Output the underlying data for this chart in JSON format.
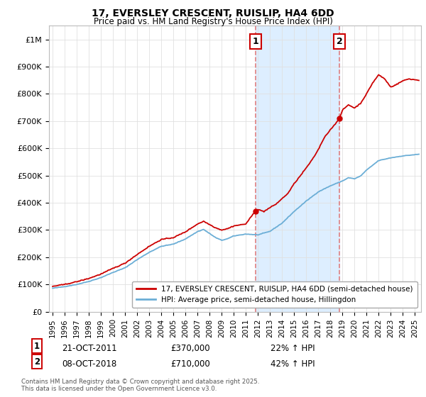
{
  "title": "17, EVERSLEY CRESCENT, RUISLIP, HA4 6DD",
  "subtitle": "Price paid vs. HM Land Registry's House Price Index (HPI)",
  "ylabel_ticks": [
    "£0",
    "£100K",
    "£200K",
    "£300K",
    "£400K",
    "£500K",
    "£600K",
    "£700K",
    "£800K",
    "£900K",
    "£1M"
  ],
  "ytick_values": [
    0,
    100000,
    200000,
    300000,
    400000,
    500000,
    600000,
    700000,
    800000,
    900000,
    1000000
  ],
  "xlim": [
    1994.7,
    2025.5
  ],
  "ylim": [
    0,
    1050000
  ],
  "sale1_year": 2011.8,
  "sale1_price": 370000,
  "sale1_label": "1",
  "sale1_date": "21-OCT-2011",
  "sale1_price_str": "£370,000",
  "sale1_hpi_str": "22% ↑ HPI",
  "sale2_year": 2018.77,
  "sale2_price": 710000,
  "sale2_label": "2",
  "sale2_date": "08-OCT-2018",
  "sale2_price_str": "£710,000",
  "sale2_hpi_str": "42% ↑ HPI",
  "red_color": "#cc0000",
  "blue_color": "#6baed6",
  "vline_color": "#e08080",
  "span_color": "#ddeeff",
  "background_color": "#ffffff",
  "legend1_label": "17, EVERSLEY CRESCENT, RUISLIP, HA4 6DD (semi-detached house)",
  "legend2_label": "HPI: Average price, semi-detached house, Hillingdon",
  "footer": "Contains HM Land Registry data © Crown copyright and database right 2025.\nThis data is licensed under the Open Government Licence v3.0."
}
